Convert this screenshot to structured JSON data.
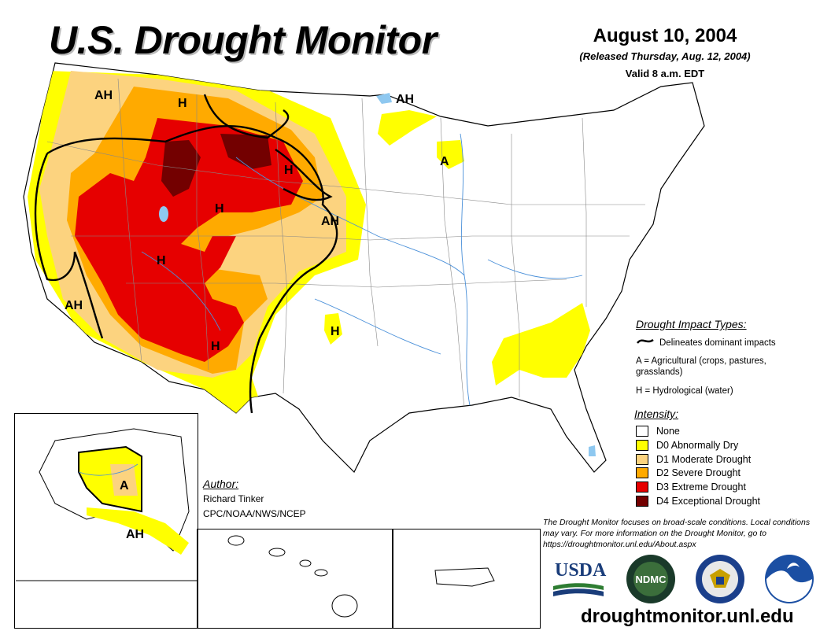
{
  "header": {
    "title": "U.S. Drought Monitor",
    "date": "August 10, 2004",
    "released": "(Released Thursday, Aug. 12, 2004)",
    "valid": "Valid 8 a.m. EDT"
  },
  "impact": {
    "title": "Drought Impact Types:",
    "delineates": "Delineates dominant impacts",
    "agricultural": "A = Agricultural (crops, pastures, grasslands)",
    "hydrological": "H = Hydrological (water)"
  },
  "intensity": {
    "title": "Intensity:",
    "levels": [
      {
        "label": "None",
        "color": "#ffffff"
      },
      {
        "label": "D0 Abnormally Dry",
        "color": "#ffff00"
      },
      {
        "label": "D1 Moderate Drought",
        "color": "#fcd37f"
      },
      {
        "label": "D2 Severe Drought",
        "color": "#ffaa00"
      },
      {
        "label": "D3 Extreme Drought",
        "color": "#e60000"
      },
      {
        "label": "D4 Exceptional Drought",
        "color": "#730000"
      }
    ]
  },
  "author": {
    "title": "Author:",
    "name": "Richard Tinker",
    "org": "CPC/NOAA/NWS/NCEP"
  },
  "note": "The Drought Monitor focuses on broad-scale conditions. Local conditions may vary. For more information on the Drought Monitor, go to https://droughtmonitor.unl.edu/About.aspx",
  "url": "droughtmonitor.unl.edu",
  "map_labels": {
    "ah_nw": "AH",
    "h_mt": "H",
    "ah_mn": "AH",
    "a_wi": "A",
    "h_sd": "H",
    "h_wy": "H",
    "ah_ne": "AH",
    "h_ut": "H",
    "ah_ca": "AH",
    "h_nm": "H",
    "h_ok": "H",
    "a_ak": "A",
    "ah_ak": "AH"
  },
  "logos": {
    "usda": "USDA",
    "ndmc": "NDMC"
  }
}
